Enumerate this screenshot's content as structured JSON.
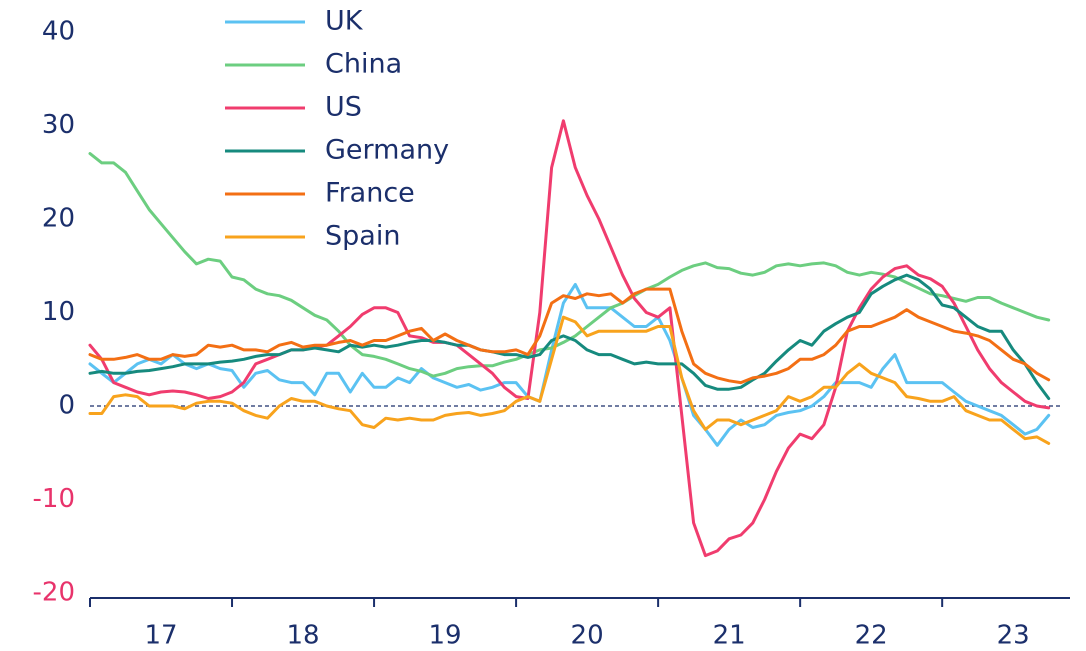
{
  "chart_data": {
    "type": "line",
    "x": [
      17,
      17.083,
      17.167,
      17.25,
      17.333,
      17.417,
      17.5,
      17.583,
      17.667,
      17.75,
      17.833,
      17.917,
      18,
      18.083,
      18.167,
      18.25,
      18.333,
      18.417,
      18.5,
      18.583,
      18.667,
      18.75,
      18.833,
      18.917,
      19,
      19.083,
      19.167,
      19.25,
      19.333,
      19.417,
      19.5,
      19.583,
      19.667,
      19.75,
      19.833,
      19.917,
      20,
      20.083,
      20.167,
      20.25,
      20.333,
      20.417,
      20.5,
      20.583,
      20.667,
      20.75,
      20.833,
      20.917,
      21,
      21.083,
      21.167,
      21.25,
      21.333,
      21.417,
      21.5,
      21.583,
      21.667,
      21.75,
      21.833,
      21.917,
      22,
      22.083,
      22.167,
      22.25,
      22.333,
      22.417,
      22.5,
      22.583,
      22.667,
      22.75,
      22.833,
      22.917,
      23,
      23.083,
      23.167,
      23.25,
      23.333,
      23.417,
      23.5,
      23.583,
      23.667,
      23.75
    ],
    "series": [
      {
        "name": "UK",
        "color": "#5bc2f2",
        "values": [
          4.5,
          3.5,
          2.5,
          3.5,
          4.5,
          5,
          4.5,
          5.5,
          4.5,
          4,
          4.5,
          4,
          3.8,
          2,
          3.5,
          3.8,
          2.8,
          2.5,
          2.5,
          1.2,
          3.5,
          3.5,
          1.5,
          3.5,
          2,
          2,
          3,
          2.5,
          4,
          3,
          2.5,
          2,
          2.3,
          1.7,
          2,
          2.5,
          2.5,
          1,
          0.5,
          6,
          11,
          13,
          10.5,
          10.5,
          10.5,
          9.5,
          8.5,
          8.5,
          9.5,
          7,
          3,
          -1,
          -2.5,
          -4.2,
          -2.5,
          -1.5,
          -2.3,
          -2,
          -1,
          -0.7,
          -0.5,
          0,
          1,
          2.5,
          2.5,
          2.5,
          2,
          4,
          5.5,
          2.5,
          2.5,
          2.5,
          2.5,
          1.5,
          0.5,
          0,
          -0.5,
          -1,
          -2,
          -3,
          -2.5,
          -1
        ]
      },
      {
        "name": "China",
        "color": "#6cce80",
        "values": [
          27,
          26,
          26,
          25,
          23,
          21,
          19.5,
          18,
          16.5,
          15.2,
          15.7,
          15.5,
          13.8,
          13.5,
          12.5,
          12,
          11.8,
          11.3,
          10.5,
          9.7,
          9.2,
          8,
          6.5,
          5.5,
          5.3,
          5,
          4.5,
          4,
          3.7,
          3.2,
          3.5,
          4,
          4.2,
          4.3,
          4.3,
          4.7,
          5,
          5.5,
          6,
          6.2,
          6.8,
          7.5,
          8.5,
          9.5,
          10.5,
          11,
          11.8,
          12.5,
          13,
          13.8,
          14.5,
          15,
          15.3,
          14.8,
          14.7,
          14.2,
          14,
          14.3,
          15,
          15.2,
          15,
          15.2,
          15.3,
          15,
          14.3,
          14,
          14.3,
          14.1,
          13.8,
          13.2,
          12.6,
          12,
          11.8,
          11.5,
          11.2,
          11.6,
          11.6,
          11,
          10.5,
          10,
          9.5,
          9.2
        ]
      },
      {
        "name": "US",
        "color": "#f03c6e",
        "values": [
          6.5,
          5,
          2.5,
          2,
          1.5,
          1.2,
          1.5,
          1.6,
          1.5,
          1.2,
          0.8,
          1,
          1.5,
          2.5,
          4.5,
          5,
          5.5,
          6,
          6,
          6.3,
          6.5,
          7.5,
          8.5,
          9.8,
          10.5,
          10.5,
          10,
          7.5,
          7.3,
          6.8,
          6.8,
          6.5,
          5.5,
          4.5,
          3.5,
          2,
          1,
          0.8,
          10,
          25.5,
          30.5,
          25.5,
          22.5,
          20,
          17,
          14,
          11.5,
          10,
          9.5,
          10.5,
          -1,
          -12.5,
          -16,
          -15.5,
          -14.2,
          -13.8,
          -12.5,
          -10,
          -7,
          -4.5,
          -3,
          -3.5,
          -2,
          2,
          8,
          10.5,
          12.5,
          13.8,
          14.7,
          15,
          14,
          13.6,
          12.8,
          11,
          8.5,
          6,
          4,
          2.5,
          1.5,
          0.5,
          0,
          -0.2
        ]
      },
      {
        "name": "Germany",
        "color": "#168a7e",
        "values": [
          3.5,
          3.7,
          3.5,
          3.5,
          3.7,
          3.8,
          4,
          4.2,
          4.5,
          4.5,
          4.5,
          4.7,
          4.8,
          5,
          5.3,
          5.5,
          5.5,
          6,
          6,
          6.2,
          6,
          5.8,
          6.5,
          6.3,
          6.5,
          6.3,
          6.5,
          6.8,
          7,
          7,
          6.8,
          6.5,
          6.5,
          6,
          5.8,
          5.5,
          5.5,
          5.2,
          5.5,
          7,
          7.5,
          7,
          6,
          5.5,
          5.5,
          5,
          4.5,
          4.7,
          4.5,
          4.5,
          4.5,
          3.5,
          2.2,
          1.8,
          1.8,
          2,
          2.8,
          3.5,
          4.8,
          6,
          7,
          6.5,
          8,
          8.8,
          9.5,
          10,
          12,
          12.8,
          13.5,
          14,
          13.5,
          12.5,
          10.8,
          10.5,
          9.5,
          8.5,
          8,
          8,
          6,
          4.5,
          2.5,
          0.8
        ]
      },
      {
        "name": "France",
        "color": "#f36f14",
        "values": [
          5.5,
          5,
          5,
          5.2,
          5.5,
          5,
          5,
          5.5,
          5.3,
          5.5,
          6.5,
          6.3,
          6.5,
          6,
          6,
          5.8,
          6.5,
          6.8,
          6.3,
          6.5,
          6.5,
          6.8,
          7,
          6.5,
          7,
          7,
          7.5,
          8,
          8.3,
          7,
          7.7,
          7,
          6.5,
          6,
          5.8,
          5.8,
          6,
          5.5,
          7.5,
          11,
          11.8,
          11.5,
          12,
          11.8,
          12,
          11,
          12,
          12.5,
          12.5,
          12.5,
          8,
          4.5,
          3.5,
          3,
          2.7,
          2.5,
          3,
          3.2,
          3.5,
          4,
          5,
          5,
          5.5,
          6.5,
          8,
          8.5,
          8.5,
          9,
          9.5,
          10.3,
          9.5,
          9,
          8.5,
          8,
          7.8,
          7.5,
          7,
          6,
          5,
          4.5,
          3.5,
          2.8
        ]
      },
      {
        "name": "Spain",
        "color": "#f8a31d",
        "values": [
          -0.8,
          -0.8,
          1,
          1.2,
          1,
          0,
          0,
          0,
          -0.3,
          0.3,
          0.5,
          0.5,
          0.3,
          -0.5,
          -1,
          -1.3,
          0,
          0.8,
          0.5,
          0.5,
          0,
          -0.3,
          -0.5,
          -2,
          -2.3,
          -1.3,
          -1.5,
          -1.3,
          -1.5,
          -1.5,
          -1,
          -0.8,
          -0.7,
          -1,
          -0.8,
          -0.5,
          0.5,
          1,
          0.5,
          5,
          9.5,
          9,
          7.5,
          8,
          8,
          8,
          8,
          8,
          8.5,
          8.5,
          3,
          -0.5,
          -2.5,
          -1.5,
          -1.5,
          -2,
          -1.5,
          -1,
          -0.5,
          1,
          0.5,
          1,
          2,
          2,
          3.5,
          4.5,
          3.5,
          3,
          2.5,
          1,
          0.8,
          0.5,
          0.5,
          1,
          -0.5,
          -1,
          -1.5,
          -1.5,
          -2.5,
          -3.5,
          -3.3,
          -4
        ]
      }
    ],
    "xlim": [
      17,
      23.9
    ],
    "xticks": [
      17,
      18,
      19,
      20,
      21,
      22,
      23
    ],
    "ylim": [
      -20,
      40
    ],
    "yticks": [
      -20,
      -10,
      0,
      10,
      20,
      30,
      40
    ],
    "tick_color": "#1b2f6b",
    "negative_tick_color": "#e8336b",
    "zero_line": true,
    "legend": "upper left"
  }
}
